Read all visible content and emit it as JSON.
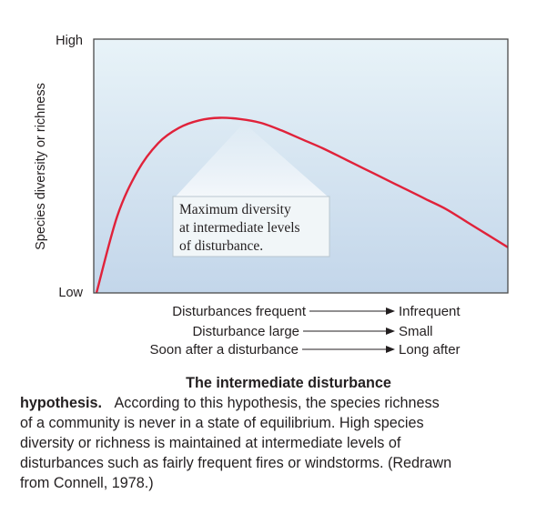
{
  "chart_data": {
    "type": "line",
    "title": "",
    "ylabel": "Species diversity or richness",
    "y_ticks": [
      "High",
      "Low"
    ],
    "x_rows": [
      {
        "left": "Disturbances frequent",
        "right": "Infrequent"
      },
      {
        "left": "Disturbance large",
        "right": "Small"
      },
      {
        "left": "Soon after a disturbance",
        "right": "Long after"
      }
    ],
    "xlim": [
      0,
      1
    ],
    "ylim": [
      0,
      1
    ],
    "series": [
      {
        "color": "#e0223a",
        "x": [
          0.0,
          0.05,
          0.1,
          0.15,
          0.2,
          0.25,
          0.3,
          0.35,
          0.4,
          0.45,
          0.5,
          0.55,
          0.6,
          0.65,
          0.7,
          0.75,
          0.8,
          0.85,
          0.9,
          0.95,
          1.0
        ],
        "y": [
          0.0,
          0.3,
          0.48,
          0.59,
          0.65,
          0.68,
          0.69,
          0.685,
          0.67,
          0.64,
          0.605,
          0.57,
          0.53,
          0.49,
          0.45,
          0.41,
          0.37,
          0.33,
          0.28,
          0.23,
          0.18
        ]
      }
    ],
    "annotation": {
      "lines": [
        "Maximum diversity",
        "at intermediate levels",
        "of disturbance."
      ]
    },
    "grid": false,
    "legend": "none"
  },
  "caption": {
    "title": "The intermediate disturbance",
    "bold_lead": "hypothesis.",
    "body_line1": "According to this hypothesis, the species richness",
    "lines": [
      "of a community is never in a state of equilibrium. High species",
      "diversity or richness is maintained at intermediate levels of",
      "disturbances such as fairly frequent fires or windstorms. (Redrawn",
      "from Connell, 1978.)"
    ]
  },
  "colors": {
    "plot_bg_top": "#e8f3f8",
    "plot_bg_bottom": "#c3d6ea",
    "curve": "#e0223a",
    "frame": "#4a4a4a"
  }
}
